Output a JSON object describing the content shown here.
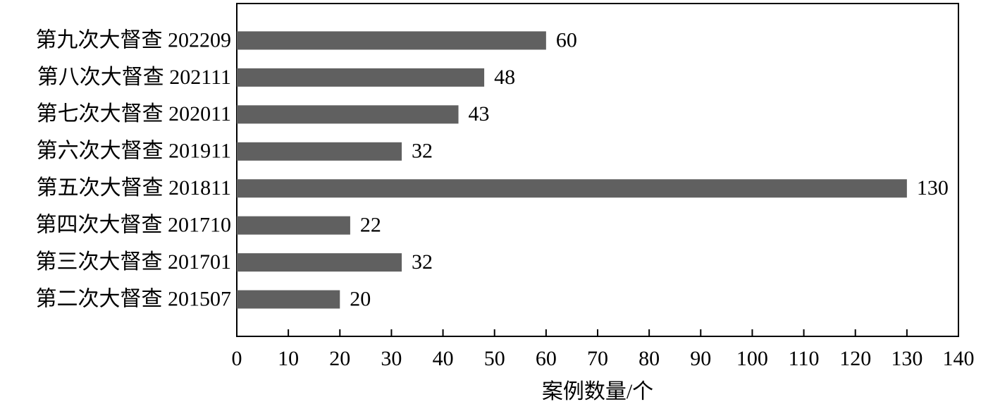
{
  "chart_data": {
    "type": "bar",
    "orientation": "horizontal",
    "x_label": "案例数量/个",
    "categories": [
      "第九次大督查 202209",
      "第八次大督查 202111",
      "第七次大督查 202011",
      "第六次大督查 201911",
      "第五次大督查 201811",
      "第四次大督查 201710",
      "第三次大督查 201701",
      "第二次大督查 201507"
    ],
    "values": [
      60,
      48,
      43,
      32,
      130,
      22,
      32,
      20
    ],
    "color": "#606060",
    "xlim": [
      0,
      140
    ],
    "xticks": [
      0,
      10,
      20,
      30,
      40,
      50,
      60,
      70,
      80,
      90,
      100,
      110,
      120,
      130,
      140
    ],
    "grid": false
  }
}
